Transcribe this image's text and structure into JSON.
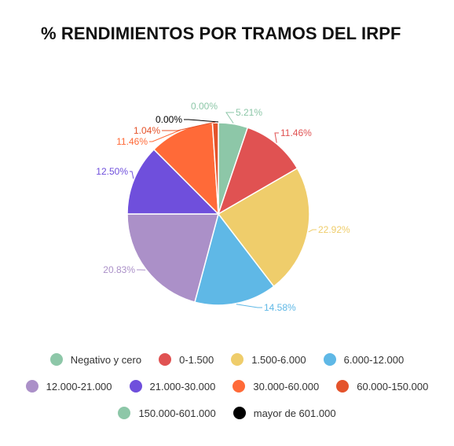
{
  "chart_data": {
    "type": "pie",
    "title": "% RENDIMIENTOS POR TRAMOS DEL IRPF",
    "categories": [
      "Negativo y cero",
      "0-1.500",
      "1.500-6.000",
      "6.000-12.000",
      "12.000-21.000",
      "21.000-30.000",
      "30.000-60.000",
      "60.000-150.000",
      "150.000-601.000",
      "mayor de 601.000"
    ],
    "values": [
      5.21,
      11.46,
      22.92,
      14.58,
      20.83,
      12.5,
      11.46,
      1.04,
      0.0,
      0.0
    ],
    "data_labels": [
      "5.21%",
      "11.46%",
      "22.92%",
      "14.58%",
      "20.83%",
      "12.50%",
      "11.46%",
      "1.04%",
      "0.00%",
      "0.00%"
    ],
    "colors": [
      "#8dc7a8",
      "#e05252",
      "#efcd6b",
      "#5fb8e6",
      "#ab90c8",
      "#6f4fdc",
      "#ff6a38",
      "#e4532b",
      "#8dc7a8",
      "#000000"
    ],
    "legend_position": "bottom",
    "legend_rows": [
      [
        0,
        1,
        2,
        3
      ],
      [
        4,
        5,
        6,
        7
      ],
      [
        8,
        9
      ]
    ]
  }
}
